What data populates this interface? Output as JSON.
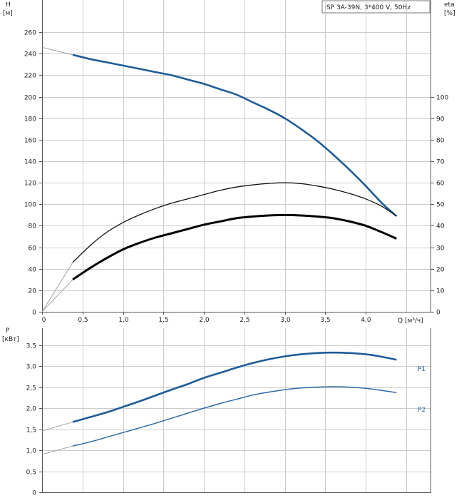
{
  "legend_box_text": "SP 3A-39N, 3*400 V, 50Hz",
  "colors": {
    "head": "#1f5c99",
    "eta_thin": "#111111",
    "eta_thick": "#000000",
    "ext": "#9a9a9a",
    "p1": "#1f5c99",
    "p2": "#2e6aa8",
    "grid": "#cccccc"
  },
  "chart_data": [
    {
      "type": "line",
      "title": "",
      "ylabel": "H",
      "ylabel_unit": "[м]",
      "y2label": "eta",
      "y2label_unit": "[%]",
      "xlabel": "Q [м³/ч]",
      "xlim": [
        0,
        4.8
      ],
      "ylim": [
        0,
        290
      ],
      "y2lim": [
        0,
        145
      ],
      "x_ticks": [
        "0",
        "0,5",
        "1,0",
        "1,5",
        "2,0",
        "2,5",
        "3,0",
        "3,5",
        "4,0"
      ],
      "y_ticks": [
        "0",
        "20",
        "40",
        "60",
        "80",
        "100",
        "120",
        "140",
        "160",
        "180",
        "200",
        "220",
        "240",
        "260"
      ],
      "y2_ticks": [
        "0",
        "10",
        "20",
        "30",
        "40",
        "50",
        "60",
        "70",
        "80",
        "90",
        "100"
      ],
      "grid": true,
      "series": [
        {
          "axis": "left",
          "style": "head",
          "x": [
            0.38,
            0.6,
            0.8,
            1.0,
            1.2,
            1.4,
            1.6,
            1.8,
            2.0,
            2.2,
            2.4,
            2.6,
            2.8,
            3.0,
            3.2,
            3.4,
            3.6,
            3.8,
            4.0,
            4.2,
            4.38
          ],
          "values": [
            239,
            235,
            232,
            229,
            226,
            223,
            220,
            216,
            212,
            207,
            202,
            195,
            188,
            180,
            170,
            159,
            146,
            132,
            117,
            101,
            89
          ],
          "extension": {
            "x": [
              0,
              0.38
            ],
            "values": [
              246,
              239
            ]
          }
        },
        {
          "axis": "right",
          "style": "eta_thin",
          "x": [
            0.38,
            0.6,
            0.8,
            1.0,
            1.2,
            1.4,
            1.6,
            1.8,
            2.0,
            2.2,
            2.4,
            2.6,
            2.8,
            3.0,
            3.2,
            3.4,
            3.6,
            3.8,
            4.0,
            4.2,
            4.38
          ],
          "values": [
            23,
            31,
            37,
            41.5,
            45,
            48,
            50.5,
            52.5,
            54.5,
            56.5,
            58,
            59,
            59.7,
            60,
            59.6,
            58.5,
            57,
            55,
            52.5,
            49,
            44.5
          ],
          "extension": {
            "x": [
              0,
              0.38
            ],
            "values": [
              0,
              23
            ]
          }
        },
        {
          "axis": "right",
          "style": "eta_thick",
          "x": [
            0.38,
            0.6,
            0.8,
            1.0,
            1.2,
            1.4,
            1.6,
            1.8,
            2.0,
            2.2,
            2.4,
            2.6,
            2.8,
            3.0,
            3.2,
            3.4,
            3.6,
            3.8,
            4.0,
            4.2,
            4.38
          ],
          "values": [
            15,
            20.5,
            25,
            29,
            32,
            34.5,
            36.5,
            38.5,
            40.5,
            42,
            43.5,
            44.3,
            44.8,
            45,
            44.8,
            44.3,
            43.5,
            42,
            40,
            37,
            34
          ],
          "extension": {
            "x": [
              0,
              0.38
            ],
            "values": [
              0,
              15
            ]
          }
        }
      ]
    },
    {
      "type": "line",
      "title": "",
      "ylabel": "P",
      "ylabel_unit": "[кВт]",
      "xlim": [
        0,
        4.8
      ],
      "ylim": [
        0,
        3.9
      ],
      "y_ticks": [
        "0",
        "0,5",
        "1,0",
        "1,5",
        "2,0",
        "2,5",
        "3,0",
        "3,5"
      ],
      "grid": true,
      "series": [
        {
          "name": "P1",
          "style": "p1",
          "x": [
            0.38,
            0.6,
            0.8,
            1.0,
            1.2,
            1.4,
            1.6,
            1.8,
            2.0,
            2.2,
            2.4,
            2.6,
            2.8,
            3.0,
            3.2,
            3.4,
            3.6,
            3.8,
            4.0,
            4.2,
            4.38
          ],
          "values": [
            1.67,
            1.79,
            1.9,
            2.03,
            2.16,
            2.3,
            2.44,
            2.57,
            2.72,
            2.84,
            2.96,
            3.07,
            3.16,
            3.23,
            3.28,
            3.31,
            3.32,
            3.31,
            3.28,
            3.22,
            3.15
          ],
          "extension": {
            "x": [
              0,
              0.38
            ],
            "values": [
              1.46,
              1.67
            ]
          }
        },
        {
          "name": "P2",
          "style": "p2",
          "x": [
            0.38,
            0.6,
            0.8,
            1.0,
            1.2,
            1.4,
            1.6,
            1.8,
            2.0,
            2.2,
            2.4,
            2.6,
            2.8,
            3.0,
            3.2,
            3.4,
            3.6,
            3.8,
            4.0,
            4.2,
            4.38
          ],
          "values": [
            1.1,
            1.2,
            1.31,
            1.42,
            1.53,
            1.64,
            1.76,
            1.88,
            2.0,
            2.11,
            2.21,
            2.31,
            2.38,
            2.44,
            2.48,
            2.5,
            2.51,
            2.5,
            2.47,
            2.42,
            2.37
          ],
          "extension": {
            "x": [
              0,
              0.38
            ],
            "values": [
              0.9,
              1.1
            ]
          }
        }
      ]
    }
  ]
}
